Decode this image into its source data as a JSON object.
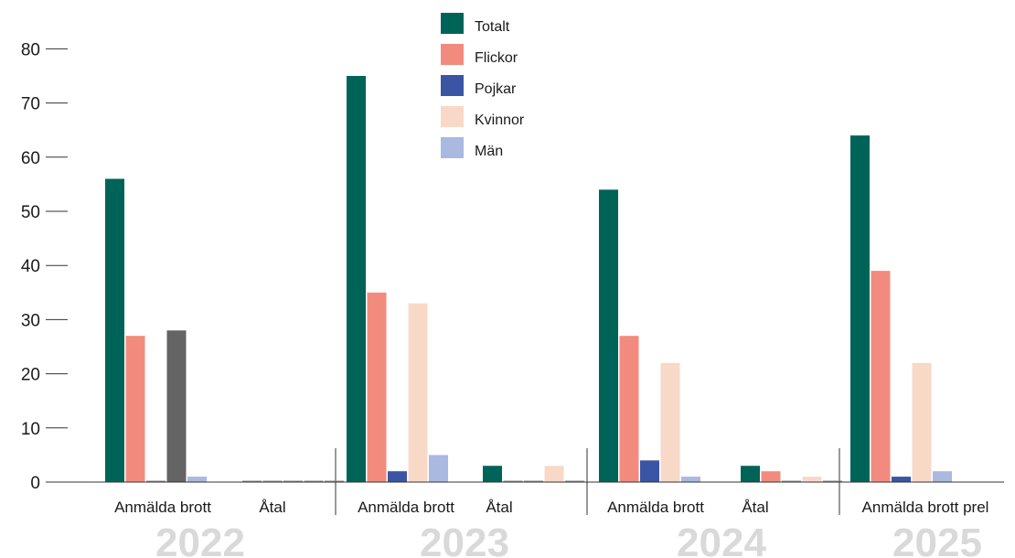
{
  "chart_data": {
    "type": "bar",
    "ylim": [
      0,
      80
    ],
    "yticks": [
      0,
      10,
      20,
      30,
      40,
      50,
      60,
      70,
      80
    ],
    "series": [
      {
        "name": "Totalt",
        "color": "#006358"
      },
      {
        "name": "Flickor",
        "color": "#f28b7e"
      },
      {
        "name": "Pojkar",
        "color": "#3a55a4"
      },
      {
        "name": "Kvinnor",
        "color": "#f8d9c8"
      },
      {
        "name": "Män",
        "color": "#a9b9e0"
      }
    ],
    "years": [
      {
        "label": "2022",
        "groups": [
          {
            "label": "Anmälda brott",
            "bars": [
              {
                "series": "Totalt",
                "value": 56
              },
              {
                "series": "Flickor",
                "value": 27
              },
              {
                "series": "Pojkar",
                "value": 0
              },
              {
                "series": "Kvinnor",
                "value": 28,
                "color": "#646464"
              },
              {
                "series": "Män",
                "value": 1
              }
            ]
          },
          {
            "label": "Åtal",
            "bars": [
              {
                "series": "Totalt",
                "value": 0
              },
              {
                "series": "Flickor",
                "value": 0
              },
              {
                "series": "Pojkar",
                "value": 0
              },
              {
                "series": "Kvinnor",
                "value": 0
              },
              {
                "series": "Män",
                "value": 0
              }
            ]
          }
        ]
      },
      {
        "label": "2023",
        "groups": [
          {
            "label": "Anmälda brott",
            "bars": [
              {
                "series": "Totalt",
                "value": 75
              },
              {
                "series": "Flickor",
                "value": 35
              },
              {
                "series": "Pojkar",
                "value": 2
              },
              {
                "series": "Kvinnor",
                "value": 33
              },
              {
                "series": "Män",
                "value": 5
              }
            ]
          },
          {
            "label": "Åtal",
            "bars": [
              {
                "series": "Totalt",
                "value": 3
              },
              {
                "series": "Flickor",
                "value": 0
              },
              {
                "series": "Pojkar",
                "value": 0
              },
              {
                "series": "Kvinnor",
                "value": 3
              },
              {
                "series": "Män",
                "value": 0
              }
            ]
          }
        ]
      },
      {
        "label": "2024",
        "groups": [
          {
            "label": "Anmälda brott",
            "bars": [
              {
                "series": "Totalt",
                "value": 54
              },
              {
                "series": "Flickor",
                "value": 27
              },
              {
                "series": "Pojkar",
                "value": 4
              },
              {
                "series": "Kvinnor",
                "value": 22
              },
              {
                "series": "Män",
                "value": 1
              }
            ]
          },
          {
            "label": "Åtal",
            "bars": [
              {
                "series": "Totalt",
                "value": 3
              },
              {
                "series": "Flickor",
                "value": 2
              },
              {
                "series": "Pojkar",
                "value": 0
              },
              {
                "series": "Kvinnor",
                "value": 1
              },
              {
                "series": "Män",
                "value": 0
              }
            ]
          }
        ]
      },
      {
        "label": "2025",
        "groups": [
          {
            "label": "Anmälda brott prel",
            "bars": [
              {
                "series": "Totalt",
                "value": 64
              },
              {
                "series": "Flickor",
                "value": 39
              },
              {
                "series": "Pojkar",
                "value": 1
              },
              {
                "series": "Kvinnor",
                "value": 22
              },
              {
                "series": "Män",
                "value": 2
              }
            ]
          }
        ]
      }
    ]
  }
}
